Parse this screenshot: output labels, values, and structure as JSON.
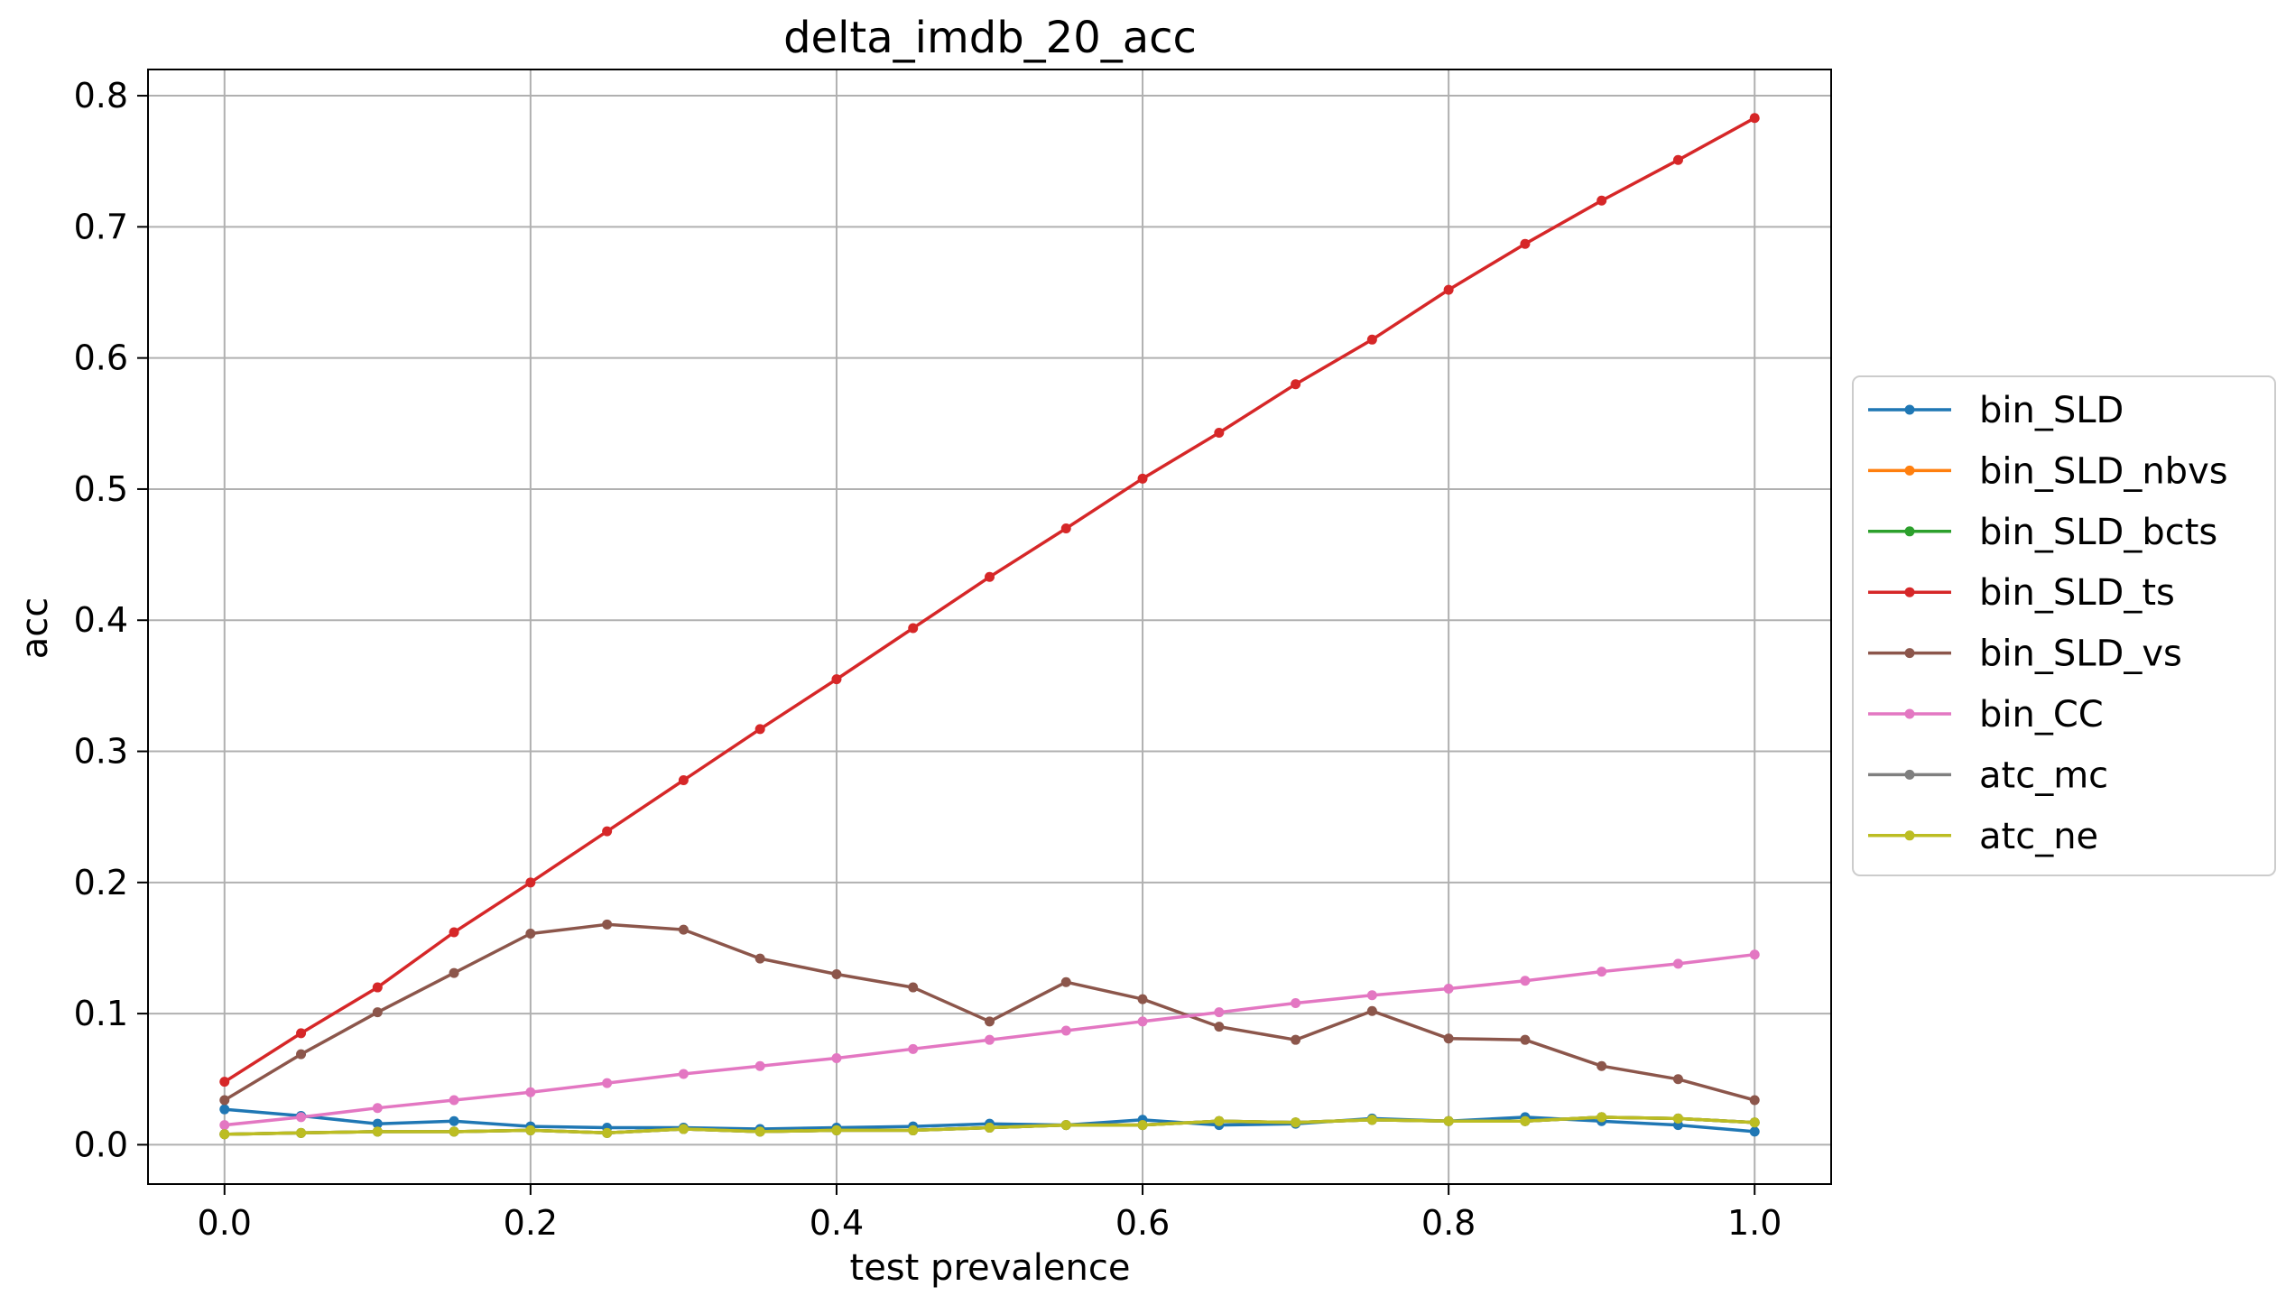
{
  "chart_data": {
    "type": "line",
    "title": "delta_imdb_20_acc",
    "xlabel": "test prevalence",
    "ylabel": "acc",
    "xlim": [
      -0.05,
      1.05
    ],
    "ylim": [
      -0.03,
      0.82
    ],
    "xticks": [
      0.0,
      0.2,
      0.4,
      0.6,
      0.8,
      1.0
    ],
    "xtick_labels": [
      "0.0",
      "0.2",
      "0.4",
      "0.6",
      "0.8",
      "1.0"
    ],
    "yticks": [
      0.0,
      0.1,
      0.2,
      0.3,
      0.4,
      0.5,
      0.6,
      0.7,
      0.8
    ],
    "ytick_labels": [
      "0.0",
      "0.1",
      "0.2",
      "0.3",
      "0.4",
      "0.5",
      "0.6",
      "0.7",
      "0.8"
    ],
    "grid": true,
    "legend_position": "right-outside",
    "x": [
      0.0,
      0.05,
      0.1,
      0.15,
      0.2,
      0.25,
      0.3,
      0.35,
      0.4,
      0.45,
      0.5,
      0.55,
      0.6,
      0.65,
      0.7,
      0.75,
      0.8,
      0.85,
      0.9,
      0.95,
      1.0
    ],
    "series": [
      {
        "name": "bin_SLD",
        "color": "#1f77b4",
        "values": [
          0.027,
          0.022,
          0.016,
          0.018,
          0.014,
          0.013,
          0.013,
          0.012,
          0.013,
          0.014,
          0.016,
          0.015,
          0.019,
          0.015,
          0.016,
          0.02,
          0.018,
          0.021,
          0.018,
          0.015,
          0.01
        ]
      },
      {
        "name": "bin_SLD_nbvs",
        "color": "#ff7f0e",
        "values": [
          0.008,
          0.009,
          0.01,
          0.01,
          0.011,
          0.009,
          0.012,
          0.01,
          0.011,
          0.011,
          0.013,
          0.015,
          0.015,
          0.018,
          0.017,
          0.019,
          0.018,
          0.018,
          0.021,
          0.02,
          0.017
        ]
      },
      {
        "name": "bin_SLD_bcts",
        "color": "#2ca02c",
        "values": [
          0.008,
          0.009,
          0.01,
          0.01,
          0.011,
          0.009,
          0.012,
          0.01,
          0.011,
          0.011,
          0.013,
          0.015,
          0.015,
          0.018,
          0.017,
          0.019,
          0.018,
          0.018,
          0.021,
          0.02,
          0.017
        ]
      },
      {
        "name": "bin_SLD_ts",
        "color": "#d62728",
        "values": [
          0.048,
          0.085,
          0.12,
          0.162,
          0.2,
          0.239,
          0.278,
          0.317,
          0.355,
          0.394,
          0.433,
          0.47,
          0.508,
          0.543,
          0.58,
          0.614,
          0.652,
          0.687,
          0.72,
          0.751,
          0.783
        ]
      },
      {
        "name": "bin_SLD_vs",
        "color": "#8c564b",
        "values": [
          0.034,
          0.069,
          0.101,
          0.131,
          0.161,
          0.168,
          0.164,
          0.142,
          0.13,
          0.12,
          0.094,
          0.124,
          0.111,
          0.09,
          0.08,
          0.102,
          0.081,
          0.08,
          0.06,
          0.05,
          0.034
        ]
      },
      {
        "name": "bin_CC",
        "color": "#e377c2",
        "values": [
          0.015,
          0.021,
          0.028,
          0.034,
          0.04,
          0.047,
          0.054,
          0.06,
          0.066,
          0.073,
          0.08,
          0.087,
          0.094,
          0.101,
          0.108,
          0.114,
          0.119,
          0.125,
          0.132,
          0.138,
          0.145
        ]
      },
      {
        "name": "atc_mc",
        "color": "#7f7f7f",
        "values": [
          0.008,
          0.009,
          0.01,
          0.01,
          0.011,
          0.009,
          0.012,
          0.01,
          0.011,
          0.011,
          0.013,
          0.015,
          0.015,
          0.018,
          0.017,
          0.019,
          0.018,
          0.018,
          0.021,
          0.02,
          0.017
        ]
      },
      {
        "name": "atc_ne",
        "color": "#bcbd22",
        "values": [
          0.008,
          0.009,
          0.01,
          0.01,
          0.011,
          0.009,
          0.012,
          0.01,
          0.011,
          0.011,
          0.013,
          0.015,
          0.015,
          0.018,
          0.017,
          0.019,
          0.018,
          0.018,
          0.021,
          0.02,
          0.017
        ]
      }
    ]
  }
}
